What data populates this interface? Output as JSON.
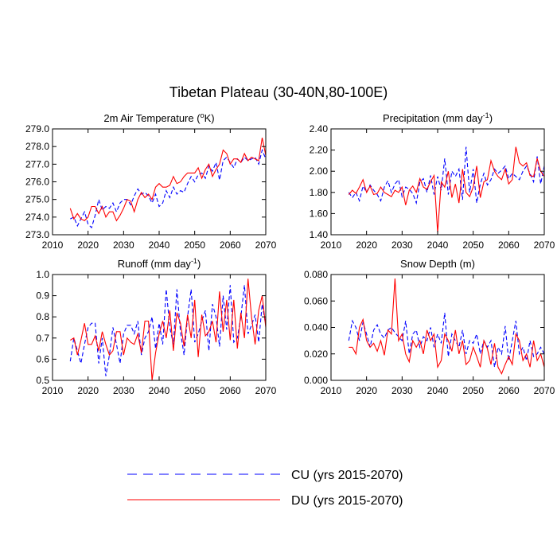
{
  "figure": {
    "title": "Tibetan Plateau (30-40N,80-100E)",
    "colors": {
      "cu": "#0000ff",
      "du": "#ff0000",
      "axis": "#000000"
    }
  },
  "legend": [
    {
      "key": "cu",
      "label": "CU (yrs 2015-2070)",
      "style": "dashed"
    },
    {
      "key": "du",
      "label": "DU (yrs 2015-2070)",
      "style": "solid"
    }
  ],
  "chart_data": [
    {
      "id": "temperature",
      "type": "line",
      "title": "2m Air Temperature (°K)",
      "title_parts": [
        "2m Air Temperature (",
        "o",
        "K)"
      ],
      "xlabel": "",
      "ylabel": "",
      "xlim": [
        2010,
        2070
      ],
      "ylim": [
        273.0,
        279.0
      ],
      "xticks": [
        2010,
        2020,
        2030,
        2040,
        2050,
        2060,
        2070
      ],
      "xtick_labels": [
        "2010",
        "2020",
        "2030",
        "2040",
        "2050",
        "2060",
        "2070"
      ],
      "yticks": [
        273.0,
        274.0,
        275.0,
        276.0,
        277.0,
        278.0,
        279.0
      ],
      "ytick_labels": [
        "273.0",
        "274.0",
        "275.0",
        "276.0",
        "277.0",
        "278.0",
        "279.0"
      ],
      "years": [
        2015,
        2016,
        2017,
        2018,
        2019,
        2020,
        2021,
        2022,
        2023,
        2024,
        2025,
        2026,
        2027,
        2028,
        2029,
        2030,
        2031,
        2032,
        2033,
        2034,
        2035,
        2036,
        2037,
        2038,
        2039,
        2040,
        2041,
        2042,
        2043,
        2044,
        2045,
        2046,
        2047,
        2048,
        2049,
        2050,
        2051,
        2052,
        2053,
        2054,
        2055,
        2056,
        2057,
        2058,
        2059,
        2060,
        2061,
        2062,
        2063,
        2064,
        2065,
        2066,
        2067,
        2068,
        2069,
        2070
      ],
      "series": [
        {
          "name": "CU",
          "key": "cu",
          "values": [
            273.9,
            274.0,
            273.5,
            273.9,
            274.3,
            273.6,
            273.4,
            274.1,
            275.0,
            274.4,
            274.6,
            274.5,
            274.8,
            274.3,
            274.8,
            275.0,
            275.0,
            274.7,
            275.2,
            275.6,
            275.3,
            275.4,
            275.2,
            274.8,
            275.3,
            274.6,
            274.8,
            275.5,
            275.1,
            275.7,
            275.3,
            275.5,
            275.4,
            275.9,
            276.3,
            276.0,
            276.4,
            276.5,
            276.2,
            276.9,
            276.6,
            277.1,
            276.1,
            277.2,
            277.4,
            277.1,
            276.8,
            277.3,
            277.1,
            277.4,
            277.2,
            277.3,
            277.4,
            277.0,
            277.8,
            277.3
          ]
        },
        {
          "name": "DU",
          "key": "du",
          "values": [
            274.5,
            273.9,
            274.2,
            273.9,
            273.8,
            274.0,
            274.6,
            274.6,
            274.2,
            274.6,
            274.0,
            274.3,
            274.3,
            273.8,
            274.1,
            274.5,
            275.0,
            274.9,
            274.3,
            275.0,
            275.4,
            275.1,
            275.3,
            275.0,
            275.7,
            275.9,
            275.7,
            275.7,
            275.8,
            276.3,
            275.9,
            276.0,
            276.3,
            276.5,
            276.5,
            276.5,
            276.8,
            276.2,
            276.7,
            277.0,
            276.3,
            276.7,
            277.0,
            277.8,
            277.6,
            277.0,
            277.3,
            277.3,
            277.1,
            277.6,
            277.2,
            277.4,
            277.3,
            277.2,
            278.5,
            277.5
          ]
        }
      ]
    },
    {
      "id": "precipitation",
      "type": "line",
      "title": "Precipitation (mm day-1)",
      "title_parts": [
        "Precipitation (mm day",
        "-1",
        ")"
      ],
      "xlabel": "",
      "ylabel": "",
      "xlim": [
        2010,
        2070
      ],
      "ylim": [
        1.4,
        2.4
      ],
      "xticks": [
        2010,
        2020,
        2030,
        2040,
        2050,
        2060,
        2070
      ],
      "xtick_labels": [
        "2010",
        "2020",
        "2030",
        "2040",
        "2050",
        "2060",
        "2070"
      ],
      "yticks": [
        1.4,
        1.6,
        1.8,
        2.0,
        2.2,
        2.4
      ],
      "ytick_labels": [
        "1.40",
        "1.60",
        "1.80",
        "2.00",
        "2.20",
        "2.40"
      ],
      "years": [
        2015,
        2016,
        2017,
        2018,
        2019,
        2020,
        2021,
        2022,
        2023,
        2024,
        2025,
        2026,
        2027,
        2028,
        2029,
        2030,
        2031,
        2032,
        2033,
        2034,
        2035,
        2036,
        2037,
        2038,
        2039,
        2040,
        2041,
        2042,
        2043,
        2044,
        2045,
        2046,
        2047,
        2048,
        2049,
        2050,
        2051,
        2052,
        2053,
        2054,
        2055,
        2056,
        2057,
        2058,
        2059,
        2060,
        2061,
        2062,
        2063,
        2064,
        2065,
        2066,
        2067,
        2068,
        2069,
        2070
      ],
      "series": [
        {
          "name": "CU",
          "key": "cu",
          "values": [
            1.8,
            1.75,
            1.8,
            1.72,
            1.86,
            1.8,
            1.87,
            1.82,
            1.78,
            1.72,
            1.85,
            1.91,
            1.8,
            1.88,
            1.92,
            1.76,
            1.85,
            1.83,
            1.79,
            1.7,
            1.9,
            1.93,
            1.8,
            1.96,
            1.78,
            1.95,
            1.82,
            2.12,
            1.78,
            2.0,
            1.95,
            2.02,
            1.73,
            2.23,
            1.8,
            2.02,
            1.7,
            1.88,
            1.98,
            1.87,
            1.92,
            2.02,
            1.98,
            2.01,
            2.05,
            1.93,
            1.98,
            1.95,
            1.92,
            2.0,
            2.05,
            1.98,
            1.9,
            2.14,
            1.88,
            2.05
          ]
        },
        {
          "name": "DU",
          "key": "du",
          "values": [
            1.78,
            1.82,
            1.79,
            1.85,
            1.92,
            1.8,
            1.86,
            1.78,
            1.79,
            1.85,
            1.8,
            1.78,
            1.76,
            1.82,
            1.8,
            1.85,
            1.68,
            1.82,
            1.86,
            1.8,
            1.93,
            1.85,
            1.83,
            1.9,
            1.96,
            1.42,
            1.9,
            1.85,
            2.0,
            1.75,
            1.88,
            1.7,
            2.02,
            1.8,
            1.76,
            1.85,
            2.05,
            1.75,
            1.9,
            1.92,
            2.1,
            2.0,
            1.95,
            1.92,
            2.02,
            1.88,
            1.92,
            2.23,
            2.08,
            2.05,
            2.08,
            1.96,
            1.95,
            2.12,
            2.0,
            1.95
          ]
        }
      ]
    },
    {
      "id": "runoff",
      "type": "line",
      "title": "Runoff (mm day-1)",
      "title_parts": [
        "Runoff (mm day",
        "-1",
        ")"
      ],
      "xlabel": "",
      "ylabel": "",
      "xlim": [
        2010,
        2070
      ],
      "ylim": [
        0.5,
        1.0
      ],
      "xticks": [
        2010,
        2020,
        2030,
        2040,
        2050,
        2060,
        2070
      ],
      "xtick_labels": [
        "2010",
        "2020",
        "2030",
        "2040",
        "2050",
        "2060",
        "2070"
      ],
      "yticks": [
        0.5,
        0.6,
        0.7,
        0.8,
        0.9,
        1.0
      ],
      "ytick_labels": [
        "0.5",
        "0.6",
        "0.7",
        "0.8",
        "0.9",
        "1.0"
      ],
      "years": [
        2015,
        2016,
        2017,
        2018,
        2019,
        2020,
        2021,
        2022,
        2023,
        2024,
        2025,
        2026,
        2027,
        2028,
        2029,
        2030,
        2031,
        2032,
        2033,
        2034,
        2035,
        2036,
        2037,
        2038,
        2039,
        2040,
        2041,
        2042,
        2043,
        2044,
        2045,
        2046,
        2047,
        2048,
        2049,
        2050,
        2051,
        2052,
        2053,
        2054,
        2055,
        2056,
        2057,
        2058,
        2059,
        2060,
        2061,
        2062,
        2063,
        2064,
        2065,
        2066,
        2067,
        2068,
        2069,
        2070
      ],
      "series": [
        {
          "name": "CU",
          "key": "cu",
          "values": [
            0.59,
            0.7,
            0.64,
            0.58,
            0.67,
            0.75,
            0.77,
            0.77,
            0.58,
            0.7,
            0.52,
            0.62,
            0.75,
            0.67,
            0.58,
            0.72,
            0.76,
            0.76,
            0.72,
            0.78,
            0.62,
            0.7,
            0.73,
            0.8,
            0.65,
            0.77,
            0.67,
            0.93,
            0.75,
            0.67,
            0.93,
            0.73,
            0.62,
            0.8,
            0.93,
            0.68,
            0.72,
            0.78,
            0.83,
            0.64,
            0.86,
            0.8,
            0.66,
            0.9,
            0.74,
            0.95,
            0.68,
            0.7,
            0.8,
            0.95,
            0.72,
            0.76,
            0.81,
            0.68,
            0.86,
            0.76
          ]
        },
        {
          "name": "DU",
          "key": "du",
          "values": [
            0.69,
            0.7,
            0.62,
            0.69,
            0.77,
            0.67,
            0.67,
            0.71,
            0.64,
            0.73,
            0.67,
            0.62,
            0.64,
            0.73,
            0.73,
            0.62,
            0.7,
            0.68,
            0.67,
            0.72,
            0.63,
            0.78,
            0.78,
            0.5,
            0.63,
            0.72,
            0.78,
            0.7,
            0.83,
            0.64,
            0.82,
            0.77,
            0.66,
            0.81,
            0.7,
            0.88,
            0.61,
            0.81,
            0.71,
            0.73,
            0.78,
            0.68,
            0.92,
            0.73,
            0.88,
            0.69,
            0.88,
            0.65,
            0.82,
            0.7,
            0.98,
            0.8,
            0.67,
            0.83,
            0.9,
            0.75
          ]
        }
      ]
    },
    {
      "id": "snow-depth",
      "type": "line",
      "title": "Snow Depth (m)",
      "title_parts": [
        "Snow Depth (m)",
        "",
        ""
      ],
      "xlabel": "",
      "ylabel": "",
      "xlim": [
        2010,
        2070
      ],
      "ylim": [
        0.0,
        0.08
      ],
      "xticks": [
        2010,
        2020,
        2030,
        2040,
        2050,
        2060,
        2070
      ],
      "xtick_labels": [
        "2010",
        "2020",
        "2030",
        "2040",
        "2050",
        "2060",
        "2070"
      ],
      "yticks": [
        0.0,
        0.02,
        0.04,
        0.06,
        0.08
      ],
      "ytick_labels": [
        "0.000",
        "0.020",
        "0.040",
        "0.060",
        "0.080"
      ],
      "years": [
        2015,
        2016,
        2017,
        2018,
        2019,
        2020,
        2021,
        2022,
        2023,
        2024,
        2025,
        2026,
        2027,
        2028,
        2029,
        2030,
        2031,
        2032,
        2033,
        2034,
        2035,
        2036,
        2037,
        2038,
        2039,
        2040,
        2041,
        2042,
        2043,
        2044,
        2045,
        2046,
        2047,
        2048,
        2049,
        2050,
        2051,
        2052,
        2053,
        2054,
        2055,
        2056,
        2057,
        2058,
        2059,
        2060,
        2061,
        2062,
        2063,
        2064,
        2065,
        2066,
        2067,
        2068,
        2069,
        2070
      ],
      "series": [
        {
          "name": "CU",
          "key": "cu",
          "values": [
            0.03,
            0.045,
            0.04,
            0.03,
            0.044,
            0.035,
            0.025,
            0.038,
            0.042,
            0.035,
            0.032,
            0.038,
            0.04,
            0.036,
            0.033,
            0.03,
            0.045,
            0.02,
            0.035,
            0.038,
            0.025,
            0.033,
            0.03,
            0.04,
            0.025,
            0.035,
            0.028,
            0.051,
            0.018,
            0.035,
            0.03,
            0.025,
            0.038,
            0.02,
            0.03,
            0.028,
            0.035,
            0.02,
            0.03,
            0.025,
            0.03,
            0.01,
            0.025,
            0.02,
            0.041,
            0.015,
            0.03,
            0.045,
            0.02,
            0.025,
            0.015,
            0.03,
            0.018,
            0.02,
            0.025,
            0.02
          ]
        },
        {
          "name": "DU",
          "key": "du",
          "values": [
            0.025,
            0.025,
            0.02,
            0.04,
            0.046,
            0.03,
            0.025,
            0.028,
            0.022,
            0.03,
            0.019,
            0.038,
            0.035,
            0.077,
            0.03,
            0.035,
            0.02,
            0.014,
            0.03,
            0.025,
            0.03,
            0.02,
            0.038,
            0.03,
            0.035,
            0.01,
            0.015,
            0.035,
            0.03,
            0.022,
            0.038,
            0.02,
            0.03,
            0.012,
            0.015,
            0.025,
            0.018,
            0.01,
            0.03,
            0.024,
            0.012,
            0.028,
            0.01,
            0.005,
            0.012,
            0.018,
            0.012,
            0.035,
            0.03,
            0.015,
            0.02,
            0.01,
            0.03,
            0.015,
            0.02,
            0.01
          ]
        }
      ]
    }
  ]
}
